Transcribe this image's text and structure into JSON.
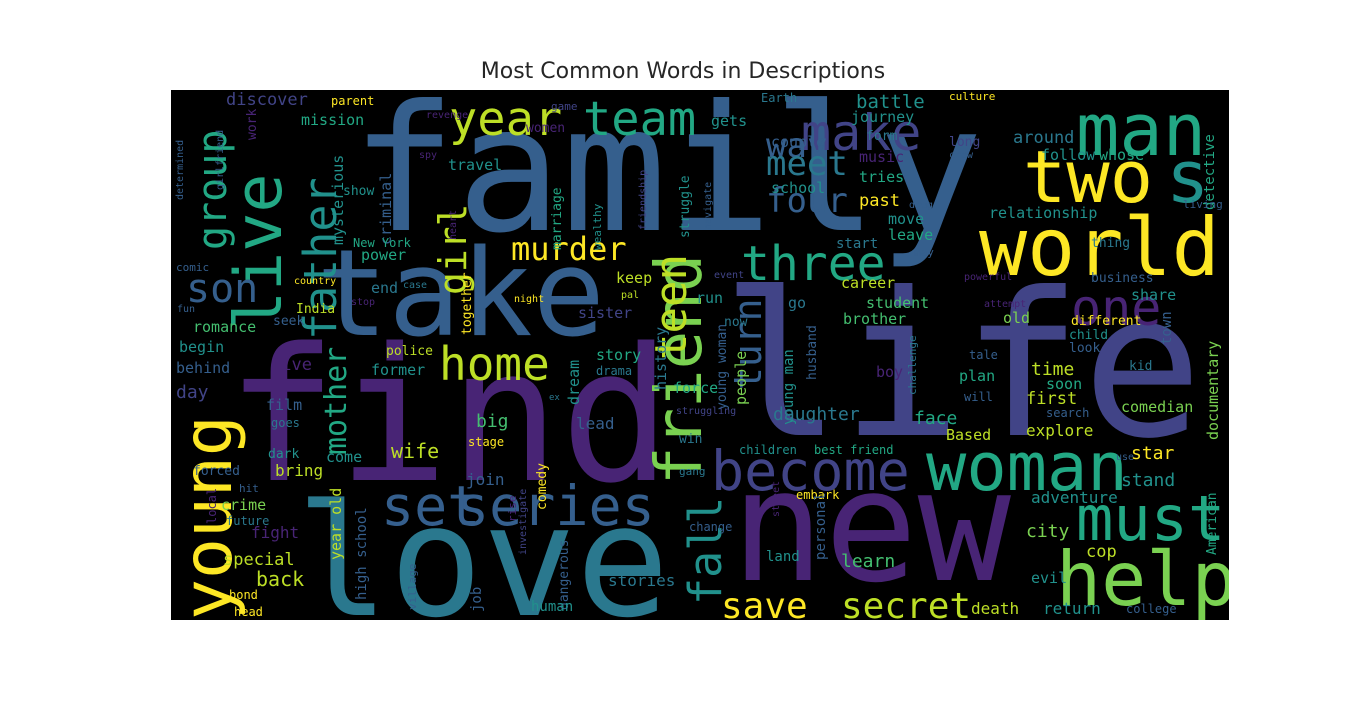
{
  "title": "Most Common Words in Descriptions",
  "palette": {
    "v1": "#482475",
    "v2": "#414487",
    "v3": "#355f8d",
    "v4": "#2a788e",
    "v5": "#21918c",
    "v6": "#22a884",
    "v7": "#44bf70",
    "v8": "#7ad151",
    "v9": "#bddf26",
    "v10": "#fde725",
    "v0": "#440154",
    "background": "#000000"
  },
  "words": [
    {
      "text": "family",
      "color": "v3"
    },
    {
      "text": "life",
      "color": "v2"
    },
    {
      "text": "find",
      "color": "v1"
    },
    {
      "text": "new",
      "color": "v1"
    },
    {
      "text": "love",
      "color": "v4"
    },
    {
      "text": "take",
      "color": "v3"
    },
    {
      "text": "world",
      "color": "v10"
    },
    {
      "text": "man",
      "color": "v6"
    },
    {
      "text": "woman",
      "color": "v6"
    },
    {
      "text": "two",
      "color": "v10"
    },
    {
      "text": "friend",
      "color": "v8"
    },
    {
      "text": "young",
      "color": "v10"
    },
    {
      "text": "live",
      "color": "v6"
    },
    {
      "text": "help",
      "color": "v8"
    },
    {
      "text": "must",
      "color": "v6"
    },
    {
      "text": "become",
      "color": "v2"
    },
    {
      "text": "series",
      "color": "v3"
    },
    {
      "text": "set",
      "color": "v3"
    },
    {
      "text": "year",
      "color": "v9"
    },
    {
      "text": "team",
      "color": "v6"
    },
    {
      "text": "make",
      "color": "v2"
    },
    {
      "text": "three",
      "color": "v6"
    },
    {
      "text": "home",
      "color": "v9"
    },
    {
      "text": "one",
      "color": "v1"
    },
    {
      "text": "s",
      "color": "v5"
    },
    {
      "text": "save",
      "color": "v10"
    },
    {
      "text": "secret",
      "color": "v9"
    },
    {
      "text": "fall",
      "color": "v5"
    },
    {
      "text": "father",
      "color": "v5"
    },
    {
      "text": "group",
      "color": "v6"
    },
    {
      "text": "son",
      "color": "v3"
    },
    {
      "text": "teen",
      "color": "v9"
    },
    {
      "text": "murder",
      "color": "v10"
    },
    {
      "text": "girl",
      "color": "v9"
    },
    {
      "text": "turn",
      "color": "v3"
    },
    {
      "text": "mother",
      "color": "v6"
    },
    {
      "text": "way",
      "color": "v3"
    },
    {
      "text": "meet",
      "color": "v4"
    },
    {
      "text": "four",
      "color": "v3"
    },
    {
      "text": "discover",
      "color": "v2"
    },
    {
      "text": "battle",
      "color": "v5"
    },
    {
      "text": "mission",
      "color": "v6"
    },
    {
      "text": "parent",
      "color": "v10"
    },
    {
      "text": "game",
      "color": "v2"
    },
    {
      "text": "Earth",
      "color": "v4"
    },
    {
      "text": "culture",
      "color": "v10"
    },
    {
      "text": "journey",
      "color": "v5"
    },
    {
      "text": "gets",
      "color": "v5"
    },
    {
      "text": "women",
      "color": "v1"
    },
    {
      "text": "revenge",
      "color": "v1"
    },
    {
      "text": "couple",
      "color": "v3"
    },
    {
      "text": "long",
      "color": "v2"
    },
    {
      "text": "crew",
      "color": "v3"
    },
    {
      "text": "around",
      "color": "v4"
    },
    {
      "text": "form",
      "color": "v4"
    },
    {
      "text": "follow",
      "color": "v5"
    },
    {
      "text": "whose",
      "color": "v6"
    },
    {
      "text": "music",
      "color": "v1"
    },
    {
      "text": "school",
      "color": "v5"
    },
    {
      "text": "tries",
      "color": "v6"
    },
    {
      "text": "past",
      "color": "v10"
    },
    {
      "text": "detective",
      "color": "v6"
    },
    {
      "text": "relationship",
      "color": "v5"
    },
    {
      "text": "move",
      "color": "v5"
    },
    {
      "text": "leave",
      "color": "v6"
    },
    {
      "text": "start",
      "color": "v4"
    },
    {
      "text": "living",
      "color": "v3"
    },
    {
      "text": "thing",
      "color": "v4"
    },
    {
      "text": "may",
      "color": "v3"
    },
    {
      "text": "travel",
      "color": "v5"
    },
    {
      "text": "mysterious",
      "color": "v5"
    },
    {
      "text": "criminal",
      "color": "v3"
    },
    {
      "text": "show",
      "color": "v5"
    },
    {
      "text": "marriage",
      "color": "v6"
    },
    {
      "text": "wealthy",
      "color": "v5"
    },
    {
      "text": "struggle",
      "color": "v5"
    },
    {
      "text": "navigate",
      "color": "v3"
    },
    {
      "text": "friendship",
      "color": "v2"
    },
    {
      "text": "determined",
      "color": "v3"
    },
    {
      "text": "girlfriend",
      "color": "v3"
    },
    {
      "text": "work",
      "color": "v1"
    },
    {
      "text": "spy",
      "color": "v1"
    },
    {
      "text": "heart",
      "color": "v1"
    },
    {
      "text": "New York",
      "color": "v6"
    },
    {
      "text": "power",
      "color": "v6"
    },
    {
      "text": "comic",
      "color": "v3"
    },
    {
      "text": "country",
      "color": "v10"
    },
    {
      "text": "case",
      "color": "v4"
    },
    {
      "text": "end",
      "color": "v4"
    },
    {
      "text": "keep",
      "color": "v9"
    },
    {
      "text": "event",
      "color": "v2"
    },
    {
      "text": "powerful",
      "color": "v1"
    },
    {
      "text": "attempt",
      "color": "v1"
    },
    {
      "text": "business",
      "color": "v3"
    },
    {
      "text": "share",
      "color": "v5"
    },
    {
      "text": "town",
      "color": "v3"
    },
    {
      "text": "career",
      "color": "v9"
    },
    {
      "text": "student",
      "color": "v7"
    },
    {
      "text": "night",
      "color": "v10"
    },
    {
      "text": "pal",
      "color": "v9"
    },
    {
      "text": "stop",
      "color": "v1"
    },
    {
      "text": "fun",
      "color": "v3"
    },
    {
      "text": "India",
      "color": "v9"
    },
    {
      "text": "seek",
      "color": "v3"
    },
    {
      "text": "romance",
      "color": "v7"
    },
    {
      "text": "begin",
      "color": "v5"
    },
    {
      "text": "behind",
      "color": "v3"
    },
    {
      "text": "day",
      "color": "v2"
    },
    {
      "text": "five",
      "color": "v1"
    },
    {
      "text": "police",
      "color": "v9"
    },
    {
      "text": "sister",
      "color": "v2"
    },
    {
      "text": "story",
      "color": "v6"
    },
    {
      "text": "former",
      "color": "v5"
    },
    {
      "text": "drama",
      "color": "v4"
    },
    {
      "text": "history",
      "color": "v4"
    },
    {
      "text": "together",
      "color": "v10"
    },
    {
      "text": "run",
      "color": "v5"
    },
    {
      "text": "young man",
      "color": "v5"
    },
    {
      "text": "young woman",
      "color": "v3"
    },
    {
      "text": "husband",
      "color": "v3"
    },
    {
      "text": "go",
      "color": "v4"
    },
    {
      "text": "now",
      "color": "v4"
    },
    {
      "text": "people",
      "color": "v8"
    },
    {
      "text": "brother",
      "color": "v7"
    },
    {
      "text": "old",
      "color": "v8"
    },
    {
      "text": "different",
      "color": "v10"
    },
    {
      "text": "child",
      "color": "v5"
    },
    {
      "text": "look",
      "color": "v3"
    },
    {
      "text": "kid",
      "color": "v4"
    },
    {
      "text": "tale",
      "color": "v3"
    },
    {
      "text": "time",
      "color": "v9"
    },
    {
      "text": "plan",
      "color": "v6"
    },
    {
      "text": "soon",
      "color": "v6"
    },
    {
      "text": "first",
      "color": "v9"
    },
    {
      "text": "will",
      "color": "v3"
    },
    {
      "text": "search",
      "color": "v3"
    },
    {
      "text": "explore",
      "color": "v9"
    },
    {
      "text": "comedian",
      "color": "v8"
    },
    {
      "text": "documentary",
      "color": "v8"
    },
    {
      "text": "boy",
      "color": "v1"
    },
    {
      "text": "challenge",
      "color": "v4"
    },
    {
      "text": "force",
      "color": "v6"
    },
    {
      "text": "face",
      "color": "v6"
    },
    {
      "text": "daughter",
      "color": "v4"
    },
    {
      "text": "film",
      "color": "v3"
    },
    {
      "text": "goes",
      "color": "v4"
    },
    {
      "text": "dream",
      "color": "v5"
    },
    {
      "text": "ex",
      "color": "v4"
    },
    {
      "text": "big",
      "color": "v7"
    },
    {
      "text": "lead",
      "color": "v3"
    },
    {
      "text": "struggling",
      "color": "v2"
    },
    {
      "text": "stage",
      "color": "v10"
    },
    {
      "text": "win",
      "color": "v4"
    },
    {
      "text": "wife",
      "color": "v9"
    },
    {
      "text": "children",
      "color": "v5"
    },
    {
      "text": "best friend",
      "color": "v6"
    },
    {
      "text": "Based",
      "color": "v9"
    },
    {
      "text": "star",
      "color": "v10"
    },
    {
      "text": "dark",
      "color": "v5"
    },
    {
      "text": "bring",
      "color": "v9"
    },
    {
      "text": "come",
      "color": "v5"
    },
    {
      "text": "forced",
      "color": "v3"
    },
    {
      "text": "comedy",
      "color": "v10"
    },
    {
      "text": "join",
      "color": "v3"
    },
    {
      "text": "gang",
      "color": "v4"
    },
    {
      "text": "use",
      "color": "v3"
    },
    {
      "text": "adventure",
      "color": "v5"
    },
    {
      "text": "stand",
      "color": "v5"
    },
    {
      "text": "hit",
      "color": "v3"
    },
    {
      "text": "crime",
      "color": "v8"
    },
    {
      "text": "future",
      "color": "v4"
    },
    {
      "text": "embark",
      "color": "v10"
    },
    {
      "text": "city",
      "color": "v8"
    },
    {
      "text": "fight",
      "color": "v1"
    },
    {
      "text": "local",
      "color": "v1"
    },
    {
      "text": "year old",
      "color": "v9"
    },
    {
      "text": "high school",
      "color": "v3"
    },
    {
      "text": "special",
      "color": "v9"
    },
    {
      "text": "change",
      "color": "v3"
    },
    {
      "text": "street",
      "color": "v1"
    },
    {
      "text": "rise",
      "color": "v1"
    },
    {
      "text": "investigate",
      "color": "v2"
    },
    {
      "text": "personal",
      "color": "v3"
    },
    {
      "text": "American",
      "color": "v6"
    },
    {
      "text": "cop",
      "color": "v9"
    },
    {
      "text": "land",
      "color": "v5"
    },
    {
      "text": "learn",
      "color": "v7"
    },
    {
      "text": "evil",
      "color": "v5"
    },
    {
      "text": "back",
      "color": "v9"
    },
    {
      "text": "village",
      "color": "v3"
    },
    {
      "text": "dangerous",
      "color": "v3"
    },
    {
      "text": "stories",
      "color": "v4"
    },
    {
      "text": "job",
      "color": "v3"
    },
    {
      "text": "bond",
      "color": "v10"
    },
    {
      "text": "head",
      "color": "v10"
    },
    {
      "text": "human",
      "color": "v5"
    },
    {
      "text": "death",
      "color": "v9"
    },
    {
      "text": "return",
      "color": "v5"
    },
    {
      "text": "college",
      "color": "v3"
    },
    {
      "text": "drug",
      "color": "v3"
    }
  ]
}
